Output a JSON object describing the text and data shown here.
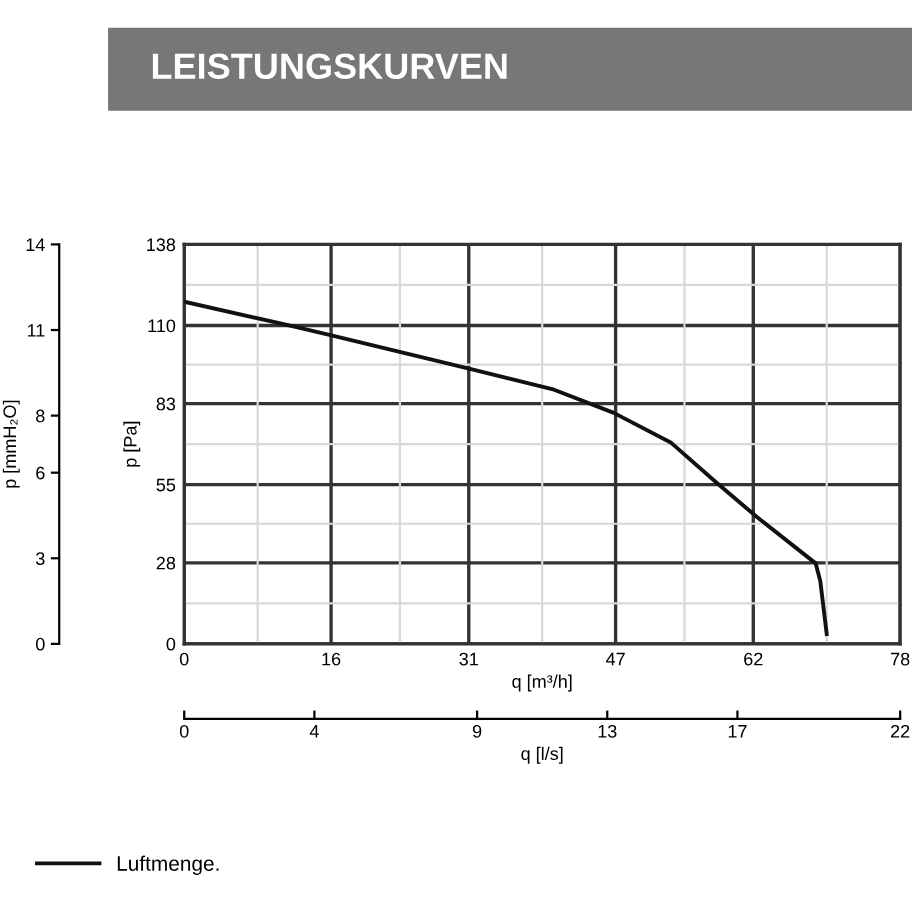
{
  "chart_data": {
    "type": "line",
    "title": "LEISTUNGSKURVEN",
    "xlabel": "q [m³/h]",
    "ylabel": "p [Pa]",
    "y2label": "p [mmH₂O]",
    "x2label": "q [l/s]",
    "x": [
      0,
      10.6,
      15.7,
      30.8,
      40.3,
      46.8,
      53,
      58.1,
      62.4,
      68.8,
      69.3,
      70
    ],
    "series": [
      {
        "name": "Luftmenge.",
        "color": "#111111",
        "values": [
          118.2,
          110.6,
          106.8,
          95.3,
          87.8,
          79.8,
          69.6,
          55.4,
          43.8,
          27.8,
          21.7,
          3.4
        ]
      }
    ],
    "xlim": [
      0,
      78
    ],
    "xticks": [
      0,
      16,
      31,
      47,
      62,
      78
    ],
    "ylim": [
      0,
      138
    ],
    "yticks": [
      0,
      28,
      55,
      83,
      110,
      138
    ],
    "y2lim": [
      0,
      14
    ],
    "y2ticks": [
      0,
      3,
      6,
      8,
      11,
      14
    ],
    "x2lim": [
      0,
      22
    ],
    "x2ticks": [
      0,
      4,
      9,
      13,
      17,
      22
    ],
    "grid": true,
    "legend": "bottom left",
    "marker": "none",
    "line_style": "solid"
  }
}
